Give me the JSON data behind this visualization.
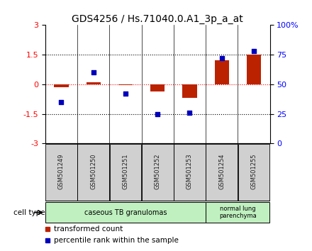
{
  "title": "GDS4256 / Hs.71040.0.A1_3p_a_at",
  "samples": [
    "GSM501249",
    "GSM501250",
    "GSM501251",
    "GSM501252",
    "GSM501253",
    "GSM501254",
    "GSM501255"
  ],
  "red_bars": [
    -0.15,
    0.1,
    -0.05,
    -0.35,
    -0.7,
    1.2,
    1.5
  ],
  "blue_squares": [
    35,
    60,
    42,
    25,
    26,
    72,
    78
  ],
  "ylim_left": [
    -3,
    3
  ],
  "ylim_right": [
    0,
    100
  ],
  "yticks_left": [
    -3,
    -1.5,
    0,
    1.5,
    3
  ],
  "yticks_right": [
    0,
    25,
    50,
    75,
    100
  ],
  "ytick_labels_right": [
    "0",
    "25",
    "50",
    "75",
    "100%"
  ],
  "group1_label": "caseous TB granulomas",
  "group2_label": "normal lung\nparenchyma",
  "group1_color": "#c0f0c0",
  "group2_color": "#c0f0c0",
  "bar_color": "#bb2200",
  "square_color": "#0000bb",
  "bar_width": 0.45,
  "cell_type_label": "cell type",
  "legend_red": "transformed count",
  "legend_blue": "percentile rank within the sample",
  "title_fontsize": 10,
  "axis_fontsize": 8,
  "label_fontsize": 7.5,
  "sample_fontsize": 6.0
}
